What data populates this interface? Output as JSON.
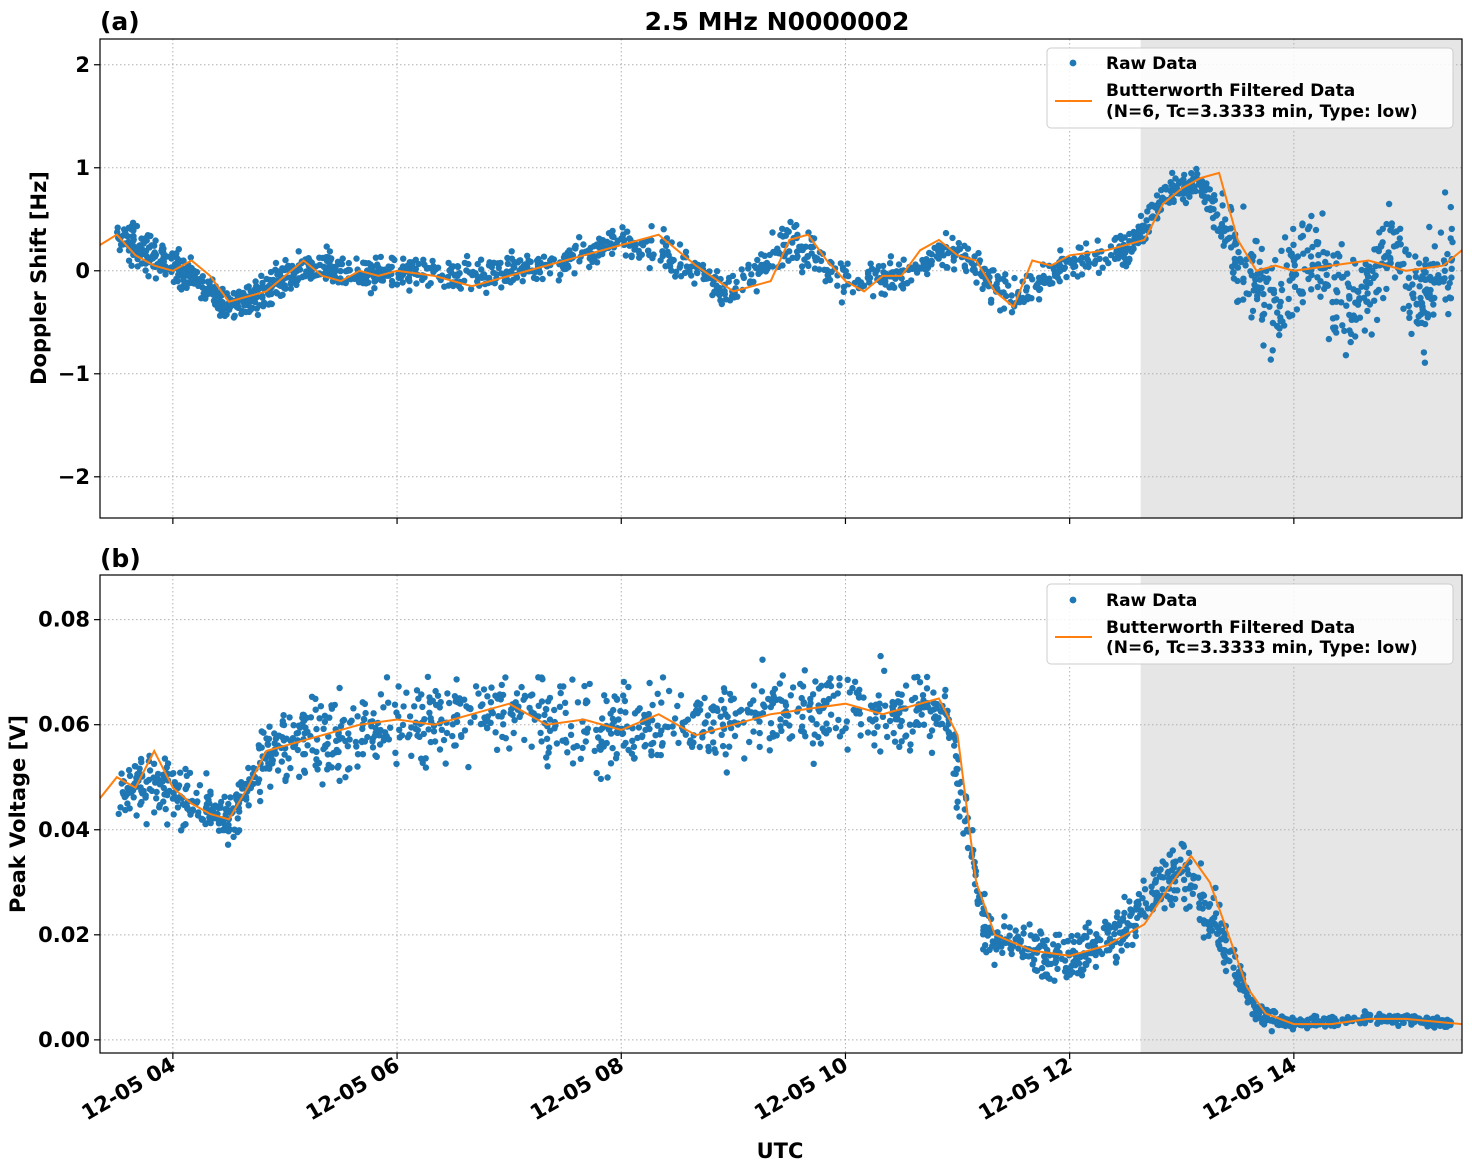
{
  "figure_title": "2.5 MHz N0000002",
  "xlabel": "UTC",
  "x_tick_labels": [
    "12-05 04",
    "12-05 06",
    "12-05 08",
    "12-05 10",
    "12-05 12",
    "12-05 14"
  ],
  "legend": {
    "raw": "Raw Data",
    "filtered_line1": "Butterworth Filtered Data",
    "filtered_line2": "(N=6, Tc=3.3333 min, Type: low)"
  },
  "colors": {
    "raw": "#1f77b4",
    "filtered": "#ff7f0e",
    "shade": "#e6e6e6",
    "grid": "#b0b0b0"
  },
  "chart_data": [
    {
      "panel_label": "(a)",
      "type": "scatter",
      "ylabel": "Doppler Shift [Hz]",
      "y_tick_labels": [
        "2",
        "1",
        "0",
        "−2"
      ],
      "y_ticks": [
        2,
        1,
        0,
        -2
      ],
      "y_tick_labels_all": [
        "2",
        "1",
        "0",
        "−1",
        "−2"
      ],
      "y_ticks_all": [
        2,
        1,
        0,
        -1,
        -2
      ],
      "ylim": [
        -2.4,
        2.25
      ],
      "xlim": [
        "12-05 03:21",
        "12-05 15:30"
      ],
      "x_ticks": [
        "12-05 04:00",
        "12-05 06:00",
        "12-05 08:00",
        "12-05 10:00",
        "12-05 12:00",
        "12-05 14:00"
      ],
      "shaded_region": [
        "12-05 12:38",
        "12-05 15:30"
      ],
      "grid": true,
      "legend_position": "upper right",
      "series": [
        {
          "name": "Butterworth Filtered Data",
          "kind": "line",
          "x": [
            "12-05 03:21",
            "12-05 03:30",
            "12-05 03:40",
            "12-05 03:50",
            "12-05 04:00",
            "12-05 04:10",
            "12-05 04:20",
            "12-05 04:30",
            "12-05 04:40",
            "12-05 04:50",
            "12-05 05:00",
            "12-05 05:10",
            "12-05 05:20",
            "12-05 05:30",
            "12-05 05:40",
            "12-05 05:50",
            "12-05 06:00",
            "12-05 06:20",
            "12-05 06:40",
            "12-05 07:00",
            "12-05 07:20",
            "12-05 07:40",
            "12-05 08:00",
            "12-05 08:20",
            "12-05 08:40",
            "12-05 09:00",
            "12-05 09:20",
            "12-05 09:30",
            "12-05 09:40",
            "12-05 09:50",
            "12-05 10:00",
            "12-05 10:10",
            "12-05 10:20",
            "12-05 10:30",
            "12-05 10:40",
            "12-05 10:50",
            "12-05 11:00",
            "12-05 11:10",
            "12-05 11:20",
            "12-05 11:30",
            "12-05 11:40",
            "12-05 11:50",
            "12-05 12:00",
            "12-05 12:20",
            "12-05 12:40",
            "12-05 12:50",
            "12-05 13:00",
            "12-05 13:10",
            "12-05 13:20",
            "12-05 13:30",
            "12-05 13:40",
            "12-05 13:50",
            "12-05 14:00",
            "12-05 14:20",
            "12-05 14:40",
            "12-05 15:00",
            "12-05 15:20",
            "12-05 15:30"
          ],
          "y": [
            0.25,
            0.35,
            0.15,
            0.05,
            0.0,
            0.1,
            -0.05,
            -0.3,
            -0.25,
            -0.2,
            -0.05,
            0.1,
            -0.05,
            -0.1,
            0.0,
            -0.05,
            0.0,
            -0.05,
            -0.15,
            -0.05,
            0.05,
            0.15,
            0.25,
            0.35,
            0.05,
            -0.2,
            -0.1,
            0.3,
            0.35,
            0.1,
            -0.1,
            -0.2,
            -0.05,
            -0.05,
            0.2,
            0.3,
            0.15,
            0.1,
            -0.2,
            -0.35,
            0.1,
            0.05,
            0.15,
            0.2,
            0.3,
            0.65,
            0.8,
            0.9,
            0.95,
            0.3,
            0.0,
            0.05,
            0.0,
            0.05,
            0.1,
            0.0,
            0.05,
            0.2
          ]
        },
        {
          "name": "Raw Data",
          "kind": "scatter",
          "x": [
            "12-05 03:30",
            "12-05 03:45",
            "12-05 04:00",
            "12-05 04:15",
            "12-05 04:30",
            "12-05 04:45",
            "12-05 05:00",
            "12-05 05:20",
            "12-05 05:40",
            "12-05 06:00",
            "12-05 06:30",
            "12-05 07:00",
            "12-05 07:30",
            "12-05 08:00",
            "12-05 08:30",
            "12-05 09:00",
            "12-05 09:30",
            "12-05 10:00",
            "12-05 10:30",
            "12-05 11:00",
            "12-05 11:30",
            "12-05 12:00",
            "12-05 12:30",
            "12-05 12:50",
            "12-05 13:10",
            "12-05 13:30",
            "12-05 13:50",
            "12-05 14:10",
            "12-05 14:30",
            "12-05 14:50",
            "12-05 15:10",
            "12-05 15:25"
          ],
          "y": [
            0.35,
            0.2,
            0.05,
            -0.1,
            -0.35,
            -0.25,
            -0.05,
            0.05,
            -0.05,
            0.0,
            -0.05,
            0.0,
            0.1,
            0.3,
            0.1,
            -0.2,
            0.3,
            -0.1,
            -0.05,
            0.2,
            -0.3,
            0.1,
            0.2,
            0.7,
            0.9,
            0.1,
            -0.3,
            0.2,
            -0.4,
            0.25,
            -0.3,
            0.2
          ],
          "spread": [
            0.35,
            0.35,
            0.3,
            0.3,
            0.35,
            0.3,
            0.3,
            0.3,
            0.3,
            0.3,
            0.3,
            0.3,
            0.3,
            0.35,
            0.35,
            0.3,
            0.4,
            0.3,
            0.3,
            0.3,
            0.35,
            0.3,
            0.3,
            0.3,
            0.3,
            0.9,
            1.0,
            1.0,
            1.0,
            1.0,
            1.0,
            1.0
          ]
        }
      ]
    },
    {
      "panel_label": "(b)",
      "type": "scatter",
      "ylabel": "Peak Voltage [V]",
      "y_tick_labels": [
        "0.08",
        "0.06",
        "0.04",
        "0.02",
        "0.00"
      ],
      "y_ticks": [
        0.08,
        0.06,
        0.04,
        0.02,
        0.0
      ],
      "ylim": [
        -0.0025,
        0.0885
      ],
      "xlim": [
        "12-05 03:21",
        "12-05 15:30"
      ],
      "x_ticks": [
        "12-05 04:00",
        "12-05 06:00",
        "12-05 08:00",
        "12-05 10:00",
        "12-05 12:00",
        "12-05 14:00"
      ],
      "shaded_region": [
        "12-05 12:38",
        "12-05 15:30"
      ],
      "grid": true,
      "legend_position": "upper right",
      "series": [
        {
          "name": "Butterworth Filtered Data",
          "kind": "line",
          "x": [
            "12-05 03:21",
            "12-05 03:30",
            "12-05 03:40",
            "12-05 03:50",
            "12-05 04:00",
            "12-05 04:10",
            "12-05 04:20",
            "12-05 04:30",
            "12-05 04:40",
            "12-05 04:50",
            "12-05 05:00",
            "12-05 05:20",
            "12-05 05:40",
            "12-05 06:00",
            "12-05 06:20",
            "12-05 06:40",
            "12-05 07:00",
            "12-05 07:20",
            "12-05 07:40",
            "12-05 08:00",
            "12-05 08:20",
            "12-05 08:40",
            "12-05 09:00",
            "12-05 09:20",
            "12-05 09:40",
            "12-05 10:00",
            "12-05 10:20",
            "12-05 10:40",
            "12-05 10:50",
            "12-05 11:00",
            "12-05 11:10",
            "12-05 11:20",
            "12-05 11:40",
            "12-05 12:00",
            "12-05 12:20",
            "12-05 12:40",
            "12-05 12:55",
            "12-05 13:05",
            "12-05 13:15",
            "12-05 13:25",
            "12-05 13:35",
            "12-05 13:45",
            "12-05 14:00",
            "12-05 14:20",
            "12-05 14:40",
            "12-05 15:00",
            "12-05 15:30"
          ],
          "y": [
            0.046,
            0.05,
            0.048,
            0.055,
            0.048,
            0.045,
            0.043,
            0.042,
            0.048,
            0.055,
            0.056,
            0.058,
            0.06,
            0.061,
            0.06,
            0.062,
            0.064,
            0.06,
            0.061,
            0.059,
            0.062,
            0.058,
            0.06,
            0.062,
            0.063,
            0.064,
            0.062,
            0.064,
            0.065,
            0.058,
            0.03,
            0.02,
            0.017,
            0.016,
            0.018,
            0.022,
            0.03,
            0.035,
            0.03,
            0.02,
            0.01,
            0.005,
            0.003,
            0.003,
            0.004,
            0.004,
            0.003
          ]
        },
        {
          "name": "Raw Data",
          "kind": "scatter",
          "x": [
            "12-05 03:30",
            "12-05 03:50",
            "12-05 04:10",
            "12-05 04:30",
            "12-05 04:50",
            "12-05 05:10",
            "12-05 05:30",
            "12-05 06:00",
            "12-05 06:30",
            "12-05 07:00",
            "12-05 07:30",
            "12-05 08:00",
            "12-05 08:30",
            "12-05 09:00",
            "12-05 09:30",
            "12-05 10:00",
            "12-05 10:30",
            "12-05 10:55",
            "12-05 11:15",
            "12-05 11:40",
            "12-05 12:00",
            "12-05 12:20",
            "12-05 12:40",
            "12-05 13:00",
            "12-05 13:20",
            "12-05 13:40",
            "12-05 14:00",
            "12-05 14:30",
            "12-05 15:00",
            "12-05 15:25"
          ],
          "y": [
            0.048,
            0.05,
            0.045,
            0.042,
            0.055,
            0.057,
            0.058,
            0.06,
            0.061,
            0.063,
            0.06,
            0.06,
            0.06,
            0.061,
            0.063,
            0.063,
            0.063,
            0.062,
            0.02,
            0.017,
            0.016,
            0.019,
            0.025,
            0.033,
            0.02,
            0.005,
            0.003,
            0.004,
            0.004,
            0.003
          ],
          "spread": [
            0.012,
            0.014,
            0.01,
            0.01,
            0.012,
            0.014,
            0.014,
            0.015,
            0.015,
            0.015,
            0.016,
            0.016,
            0.016,
            0.016,
            0.016,
            0.016,
            0.015,
            0.014,
            0.009,
            0.009,
            0.009,
            0.01,
            0.012,
            0.012,
            0.01,
            0.004,
            0.002,
            0.002,
            0.002,
            0.002
          ]
        }
      ]
    }
  ]
}
